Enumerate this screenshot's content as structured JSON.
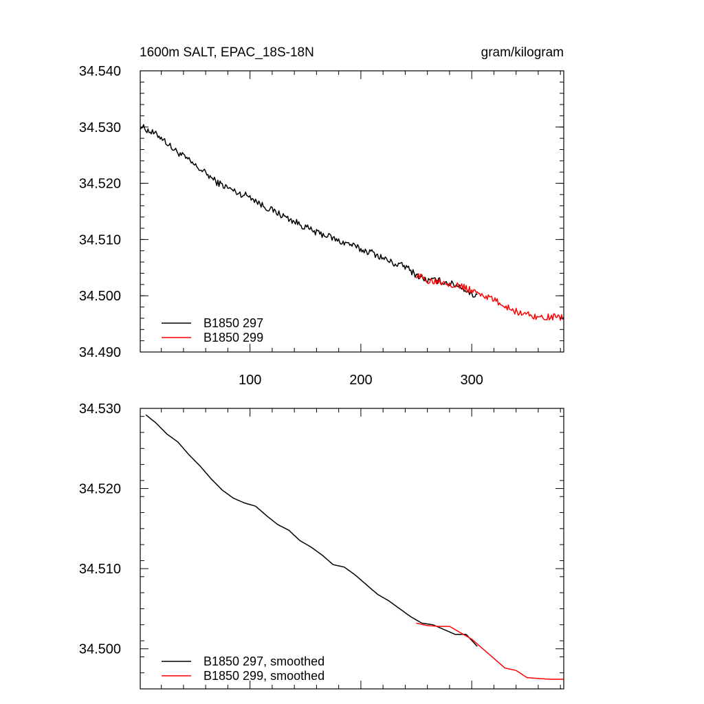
{
  "title_left": "1600m SALT, EPAC_18S-18N",
  "title_right": "gram/kilogram",
  "colors": {
    "series_297": "#000000",
    "series_299": "#ff0000",
    "axis": "#000000"
  },
  "chart_data": [
    {
      "type": "line",
      "title": "1600m SALT, EPAC_18S-18N",
      "units": "gram/kilogram",
      "xlim": [
        1,
        383
      ],
      "ylim": [
        34.49,
        34.54
      ],
      "xticks": [
        100,
        200,
        300
      ],
      "xtick_labels": [
        "100",
        "200",
        "300"
      ],
      "yticks": [
        34.49,
        34.5,
        34.51,
        34.52,
        34.53,
        34.54
      ],
      "ytick_labels": [
        "34.490",
        "34.500",
        "34.510",
        "34.520",
        "34.530",
        "34.540"
      ],
      "legend_position": "bottom-left",
      "series": [
        {
          "name": "B1850 297",
          "color": "#000000",
          "x": [
            1,
            10,
            20,
            30,
            40,
            50,
            60,
            70,
            80,
            90,
            100,
            110,
            120,
            130,
            140,
            150,
            160,
            170,
            180,
            190,
            200,
            210,
            220,
            230,
            240,
            250,
            260,
            270,
            280,
            290,
            300,
            305
          ],
          "y": [
            34.5302,
            34.5292,
            34.5282,
            34.5262,
            34.5248,
            34.5232,
            34.5218,
            34.5202,
            34.5192,
            34.5182,
            34.5177,
            34.5162,
            34.5152,
            34.5142,
            34.5132,
            34.5122,
            34.5112,
            34.5107,
            34.5097,
            34.5092,
            34.5082,
            34.5077,
            34.5067,
            34.5057,
            34.5052,
            34.5037,
            34.5027,
            34.5027,
            34.5022,
            34.5017,
            34.5002,
            34.5002
          ],
          "noise": 0.0006
        },
        {
          "name": "B1850 299",
          "color": "#ff0000",
          "x": [
            250,
            260,
            270,
            280,
            290,
            300,
            310,
            320,
            330,
            340,
            350,
            360,
            370,
            383
          ],
          "y": [
            34.5037,
            34.5027,
            34.5027,
            34.5022,
            34.5017,
            34.5009,
            34.5002,
            34.4992,
            34.4982,
            34.4972,
            34.4967,
            34.4962,
            34.4962,
            34.4962
          ],
          "noise": 0.0006
        }
      ]
    },
    {
      "type": "line",
      "xlim": [
        1,
        383
      ],
      "ylim": [
        34.495,
        34.53
      ],
      "xticks": [
        100,
        200,
        300
      ],
      "yticks": [
        34.5,
        34.51,
        34.52,
        34.53
      ],
      "ytick_labels": [
        "34.500",
        "34.510",
        "34.520",
        "34.530"
      ],
      "legend_position": "bottom-left",
      "series": [
        {
          "name": "B1850 297, smoothed",
          "color": "#000000",
          "x": [
            6,
            15,
            25,
            35,
            45,
            55,
            65,
            75,
            85,
            95,
            105,
            115,
            125,
            135,
            145,
            155,
            165,
            175,
            185,
            195,
            205,
            215,
            225,
            235,
            245,
            255,
            265,
            275,
            285,
            295,
            305
          ],
          "y": [
            34.5292,
            34.5282,
            34.5268,
            34.5258,
            34.5242,
            34.5228,
            34.5212,
            34.5198,
            34.5188,
            34.5182,
            34.5178,
            34.5166,
            34.5155,
            34.5148,
            34.5135,
            34.5127,
            34.5117,
            34.5105,
            34.5102,
            34.5092,
            34.508,
            34.5068,
            34.506,
            34.505,
            34.504,
            34.5032,
            34.503,
            34.5024,
            34.5018,
            34.5018,
            34.5003
          ],
          "noise": 0
        },
        {
          "name": "B1850 299, smoothed",
          "color": "#ff0000",
          "x": [
            250,
            260,
            270,
            280,
            290,
            300,
            310,
            320,
            330,
            340,
            350,
            360,
            370,
            375,
            385
          ],
          "y": [
            34.5032,
            34.5029,
            34.5028,
            34.5028,
            34.502,
            34.5012,
            34.5,
            34.4988,
            34.4976,
            34.4973,
            34.4964,
            34.4963,
            34.4962,
            34.4962,
            34.4962
          ],
          "noise": 0
        }
      ]
    }
  ]
}
